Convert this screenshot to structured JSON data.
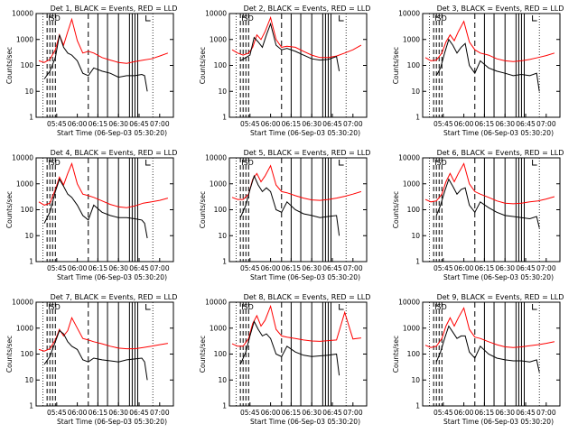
{
  "chart_data": [
    {
      "type": "line",
      "title": "Det 1, BLACK = Events, RED = LLD",
      "marker_text": "ISD",
      "xlabel": "Start Time (06-Sep-03 05:30:20)",
      "ylabel": "Counts/sec",
      "yscale": "log",
      "ylim": [
        1,
        10000
      ],
      "yticks": [
        "1",
        "10",
        "100",
        "1000",
        "10000"
      ],
      "xticks": [
        "05:45",
        "06:00",
        "06:15",
        "06:30",
        "06:45",
        "07:00"
      ],
      "colors": {
        "events": "#000000",
        "lld": "#ff0000"
      },
      "events": {
        "x": [
          "05:36",
          "05:40",
          "05:44",
          "05:47",
          "05:50",
          "05:53",
          "05:56",
          "06:00",
          "06:04",
          "06:08",
          "06:12",
          "06:18",
          "06:24",
          "06:30",
          "06:36",
          "06:42",
          "06:47",
          "06:49",
          "06:51"
        ],
        "y": [
          30,
          60,
          200,
          1500,
          500,
          300,
          250,
          150,
          50,
          40,
          80,
          60,
          50,
          35,
          40,
          40,
          45,
          40,
          10
        ]
      },
      "lld": {
        "x": [
          "05:32",
          "05:36",
          "05:40",
          "05:44",
          "05:47",
          "05:50",
          "05:53",
          "05:56",
          "06:00",
          "06:04",
          "06:08",
          "06:12",
          "06:18",
          "06:24",
          "06:30",
          "06:36",
          "06:42",
          "06:48",
          "06:54",
          "07:00",
          "07:06"
        ],
        "y": [
          150,
          130,
          170,
          400,
          1500,
          600,
          2000,
          6000,
          900,
          300,
          350,
          300,
          200,
          160,
          130,
          120,
          140,
          160,
          180,
          230,
          300
        ]
      }
    },
    {
      "type": "line",
      "title": "Det 2, BLACK = Events, RED = LLD",
      "marker_text": "ISD",
      "xlabel": "Start Time (06-Sep-03 05:30:20)",
      "ylabel": "Counts/sec",
      "yscale": "log",
      "ylim": [
        1,
        10000
      ],
      "yticks": [
        "1",
        "10",
        "100",
        "1000",
        "10000"
      ],
      "xticks": [
        "05:45",
        "06:00",
        "06:15",
        "06:30",
        "06:45",
        "07:00"
      ],
      "colors": {
        "events": "#000000",
        "lld": "#ff0000"
      },
      "events": {
        "x": [
          "05:38",
          "05:42",
          "05:45",
          "05:48",
          "05:51",
          "05:54",
          "05:57",
          "06:00",
          "06:04",
          "06:08",
          "06:12",
          "06:18",
          "06:24",
          "06:30",
          "06:36",
          "06:42",
          "06:48",
          "06:50"
        ],
        "y": [
          150,
          200,
          250,
          1200,
          800,
          500,
          1500,
          4000,
          600,
          400,
          450,
          350,
          250,
          180,
          160,
          170,
          220,
          60
        ]
      },
      "lld": {
        "x": [
          "05:32",
          "05:36",
          "05:40",
          "05:44",
          "05:47",
          "05:50",
          "05:53",
          "05:56",
          "06:00",
          "06:04",
          "06:08",
          "06:12",
          "06:18",
          "06:24",
          "06:30",
          "06:36",
          "06:42",
          "06:48",
          "06:54",
          "07:00",
          "07:06"
        ],
        "y": [
          400,
          300,
          250,
          300,
          500,
          1500,
          1000,
          2000,
          7000,
          1000,
          500,
          550,
          500,
          350,
          250,
          200,
          200,
          230,
          300,
          400,
          600
        ]
      }
    },
    {
      "type": "line",
      "title": "Det 3, BLACK = Events, RED = LLD",
      "marker_text": "ISD",
      "xlabel": "Start Time (06-Sep-03 05:30:20)",
      "ylabel": "Counts/sec",
      "yscale": "log",
      "ylim": [
        1,
        10000
      ],
      "yticks": [
        "1",
        "10",
        "100",
        "1000",
        "10000"
      ],
      "xticks": [
        "05:45",
        "06:00",
        "06:15",
        "06:30",
        "06:45",
        "07:00"
      ],
      "colors": {
        "events": "#000000",
        "lld": "#ff0000"
      },
      "events": {
        "x": [
          "05:40",
          "05:43",
          "05:46",
          "05:49",
          "05:52",
          "05:55",
          "05:58",
          "06:01",
          "06:04",
          "06:08",
          "06:12",
          "06:18",
          "06:24",
          "06:30",
          "06:36",
          "06:42",
          "06:48",
          "06:53",
          "06:55"
        ],
        "y": [
          40,
          80,
          300,
          1000,
          600,
          300,
          500,
          700,
          100,
          50,
          150,
          80,
          60,
          50,
          40,
          45,
          40,
          50,
          10
        ]
      },
      "lld": {
        "x": [
          "05:32",
          "05:36",
          "05:40",
          "05:44",
          "05:47",
          "05:50",
          "05:53",
          "05:56",
          "06:00",
          "06:04",
          "06:08",
          "06:12",
          "06:18",
          "06:24",
          "06:30",
          "06:36",
          "06:42",
          "06:48",
          "06:54",
          "07:00",
          "07:06"
        ],
        "y": [
          200,
          150,
          160,
          300,
          800,
          1500,
          900,
          2000,
          5000,
          800,
          400,
          300,
          250,
          180,
          150,
          140,
          150,
          170,
          200,
          240,
          300
        ]
      }
    },
    {
      "type": "line",
      "title": "Det 4, BLACK = Events, RED = LLD",
      "marker_text": "ISD",
      "xlabel": "Start Time (06-Sep-03 05:30:20)",
      "ylabel": "Counts/sec",
      "yscale": "log",
      "ylim": [
        1,
        10000
      ],
      "yticks": [
        "1",
        "10",
        "100",
        "1000",
        "10000"
      ],
      "xticks": [
        "05:45",
        "06:00",
        "06:15",
        "06:30",
        "06:45",
        "07:00"
      ],
      "colors": {
        "events": "#000000",
        "lld": "#ff0000"
      },
      "events": {
        "x": [
          "05:36",
          "05:40",
          "05:44",
          "05:47",
          "05:50",
          "05:53",
          "05:56",
          "06:00",
          "06:04",
          "06:08",
          "06:12",
          "06:18",
          "06:24",
          "06:30",
          "06:36",
          "06:42",
          "06:47",
          "06:49",
          "06:51"
        ],
        "y": [
          30,
          80,
          500,
          1500,
          800,
          400,
          300,
          150,
          60,
          40,
          150,
          80,
          60,
          50,
          50,
          45,
          40,
          30,
          8
        ]
      },
      "lld": {
        "x": [
          "05:32",
          "05:36",
          "05:40",
          "05:44",
          "05:47",
          "05:50",
          "05:53",
          "05:56",
          "06:00",
          "06:04",
          "06:08",
          "06:12",
          "06:18",
          "06:24",
          "06:30",
          "06:36",
          "06:42",
          "06:48",
          "06:54",
          "07:00",
          "07:06"
        ],
        "y": [
          200,
          150,
          180,
          600,
          1800,
          900,
          2500,
          6000,
          1000,
          400,
          350,
          300,
          220,
          160,
          130,
          120,
          140,
          180,
          200,
          230,
          280
        ]
      }
    },
    {
      "type": "line",
      "title": "Det 5, BLACK = Events, RED = LLD",
      "marker_text": "ISD",
      "xlabel": "Start Time (06-Sep-03 05:30:20)",
      "ylabel": "Counts/sec",
      "yscale": "log",
      "ylim": [
        1,
        10000
      ],
      "yticks": [
        "1",
        "10",
        "100",
        "1000",
        "10000"
      ],
      "xticks": [
        "05:45",
        "06:00",
        "06:15",
        "06:30",
        "06:45",
        "07:00"
      ],
      "colors": {
        "events": "#000000",
        "lld": "#ff0000"
      },
      "events": {
        "x": [
          "05:38",
          "05:42",
          "05:45",
          "05:48",
          "05:51",
          "05:54",
          "05:57",
          "06:00",
          "06:04",
          "06:08",
          "06:12",
          "06:18",
          "06:24",
          "06:30",
          "06:36",
          "06:42",
          "06:48",
          "06:50"
        ],
        "y": [
          50,
          150,
          600,
          2000,
          900,
          500,
          700,
          500,
          100,
          80,
          200,
          100,
          70,
          60,
          50,
          55,
          60,
          10
        ]
      },
      "lld": {
        "x": [
          "05:32",
          "05:36",
          "05:40",
          "05:44",
          "05:47",
          "05:50",
          "05:53",
          "05:56",
          "06:00",
          "06:04",
          "06:08",
          "06:12",
          "06:18",
          "06:24",
          "06:30",
          "06:36",
          "06:42",
          "06:48",
          "06:54",
          "07:00",
          "07:06"
        ],
        "y": [
          300,
          250,
          250,
          400,
          1500,
          2500,
          1200,
          2000,
          5000,
          900,
          500,
          450,
          350,
          280,
          240,
          230,
          250,
          280,
          330,
          400,
          500
        ]
      }
    },
    {
      "type": "line",
      "title": "Det 6, BLACK = Events, RED = LLD",
      "marker_text": "ISD",
      "xlabel": "Start Time (06-Sep-03 05:30:20)",
      "ylabel": "Counts/sec",
      "yscale": "log",
      "ylim": [
        1,
        10000
      ],
      "yticks": [
        "1",
        "10",
        "100",
        "1000",
        "10000"
      ],
      "xticks": [
        "05:45",
        "06:00",
        "06:15",
        "06:30",
        "06:45",
        "07:00"
      ],
      "colors": {
        "events": "#000000",
        "lld": "#ff0000"
      },
      "events": {
        "x": [
          "05:40",
          "05:43",
          "05:46",
          "05:49",
          "05:52",
          "05:55",
          "05:58",
          "06:01",
          "06:04",
          "06:08",
          "06:12",
          "06:18",
          "06:24",
          "06:30",
          "06:36",
          "06:42",
          "06:48",
          "06:53",
          "06:55"
        ],
        "y": [
          60,
          150,
          500,
          1500,
          800,
          400,
          600,
          700,
          150,
          80,
          200,
          120,
          80,
          60,
          55,
          50,
          45,
          55,
          20
        ]
      },
      "lld": {
        "x": [
          "05:32",
          "05:36",
          "05:40",
          "05:44",
          "05:47",
          "05:50",
          "05:53",
          "05:56",
          "06:00",
          "06:04",
          "06:08",
          "06:12",
          "06:18",
          "06:24",
          "06:30",
          "06:36",
          "06:42",
          "06:48",
          "06:54",
          "07:00",
          "07:06"
        ],
        "y": [
          250,
          200,
          220,
          400,
          1200,
          2500,
          1200,
          2500,
          6000,
          1000,
          500,
          400,
          300,
          220,
          180,
          170,
          180,
          200,
          220,
          260,
          320
        ]
      }
    },
    {
      "type": "line",
      "title": "Det 7, BLACK = Events, RED = LLD",
      "marker_text": "ISD",
      "xlabel": "Start Time (06-Sep-03 05:30:20)",
      "ylabel": "Counts/sec",
      "yscale": "log",
      "ylim": [
        1,
        10000
      ],
      "yticks": [
        "1",
        "10",
        "100",
        "1000",
        "10000"
      ],
      "xticks": [
        "05:45",
        "06:00",
        "06:15",
        "06:30",
        "06:45",
        "07:00"
      ],
      "colors": {
        "events": "#000000",
        "lld": "#ff0000"
      },
      "events": {
        "x": [
          "05:36",
          "05:40",
          "05:44",
          "05:47",
          "05:50",
          "05:53",
          "05:56",
          "06:00",
          "06:04",
          "06:08",
          "06:12",
          "06:18",
          "06:24",
          "06:30",
          "06:36",
          "06:42",
          "06:47",
          "06:49",
          "06:51"
        ],
        "y": [
          40,
          80,
          300,
          800,
          600,
          300,
          200,
          150,
          60,
          50,
          70,
          60,
          55,
          50,
          60,
          65,
          70,
          50,
          10
        ]
      },
      "lld": {
        "x": [
          "05:32",
          "05:36",
          "05:40",
          "05:44",
          "05:47",
          "05:50",
          "05:53",
          "05:56",
          "06:00",
          "06:04",
          "06:08",
          "06:12",
          "06:18",
          "06:24",
          "06:30",
          "06:36",
          "06:42",
          "06:48",
          "06:54",
          "07:00",
          "07:06"
        ],
        "y": [
          150,
          130,
          160,
          350,
          900,
          500,
          800,
          2500,
          1000,
          400,
          350,
          300,
          250,
          200,
          170,
          160,
          160,
          180,
          200,
          230,
          260
        ]
      }
    },
    {
      "type": "line",
      "title": "Det 8, BLACK = Events, RED = LLD",
      "marker_text": "ISD",
      "xlabel": "Start Time (06-Sep-03 05:30:20)",
      "ylabel": "Counts/sec",
      "yscale": "log",
      "ylim": [
        1,
        10000
      ],
      "yticks": [
        "1",
        "10",
        "100",
        "1000",
        "10000"
      ],
      "xticks": [
        "05:45",
        "06:00",
        "06:15",
        "06:30",
        "06:45",
        "07:00"
      ],
      "colors": {
        "events": "#000000",
        "lld": "#ff0000"
      },
      "events": {
        "x": [
          "05:38",
          "05:42",
          "05:45",
          "05:48",
          "05:51",
          "05:54",
          "05:57",
          "06:00",
          "06:04",
          "06:08",
          "06:12",
          "06:18",
          "06:24",
          "06:30",
          "06:36",
          "06:42",
          "06:48",
          "06:50"
        ],
        "y": [
          40,
          120,
          500,
          1800,
          900,
          500,
          600,
          400,
          100,
          80,
          200,
          120,
          90,
          80,
          85,
          90,
          100,
          15
        ]
      },
      "lld": {
        "x": [
          "05:32",
          "05:36",
          "05:40",
          "05:44",
          "05:47",
          "05:50",
          "05:53",
          "05:56",
          "06:00",
          "06:04",
          "06:08",
          "06:12",
          "06:18",
          "06:24",
          "06:30",
          "06:36",
          "06:42",
          "06:48",
          "06:54",
          "07:00",
          "07:06"
        ],
        "y": [
          250,
          200,
          200,
          400,
          1500,
          3000,
          1200,
          2000,
          7000,
          900,
          500,
          450,
          400,
          350,
          320,
          310,
          330,
          350,
          4000,
          380,
          420
        ]
      }
    },
    {
      "type": "line",
      "title": "Det 9, BLACK = Events, RED = LLD",
      "marker_text": "ISD",
      "xlabel": "Start Time (06-Sep-03 05:30:20)",
      "ylabel": "Counts/sec",
      "yscale": "log",
      "ylim": [
        1,
        10000
      ],
      "yticks": [
        "1",
        "10",
        "100",
        "1000",
        "10000"
      ],
      "xticks": [
        "05:45",
        "06:00",
        "06:15",
        "06:30",
        "06:45",
        "07:00"
      ],
      "colors": {
        "events": "#000000",
        "lld": "#ff0000"
      },
      "events": {
        "x": [
          "05:40",
          "05:43",
          "05:46",
          "05:49",
          "05:52",
          "05:55",
          "05:58",
          "06:01",
          "06:04",
          "06:08",
          "06:12",
          "06:18",
          "06:24",
          "06:30",
          "06:36",
          "06:42",
          "06:48",
          "06:53",
          "06:55"
        ],
        "y": [
          50,
          120,
          400,
          1200,
          700,
          400,
          500,
          500,
          120,
          70,
          200,
          100,
          70,
          60,
          55,
          55,
          50,
          60,
          20
        ]
      },
      "lld": {
        "x": [
          "05:32",
          "05:36",
          "05:40",
          "05:44",
          "05:47",
          "05:50",
          "05:53",
          "05:56",
          "06:00",
          "06:04",
          "06:08",
          "06:12",
          "06:18",
          "06:24",
          "06:30",
          "06:36",
          "06:42",
          "06:48",
          "06:54",
          "07:00",
          "07:06"
        ],
        "y": [
          220,
          180,
          200,
          400,
          1200,
          2500,
          1200,
          2500,
          6000,
          900,
          450,
          400,
          300,
          230,
          190,
          180,
          190,
          210,
          230,
          260,
          300
        ]
      }
    }
  ]
}
